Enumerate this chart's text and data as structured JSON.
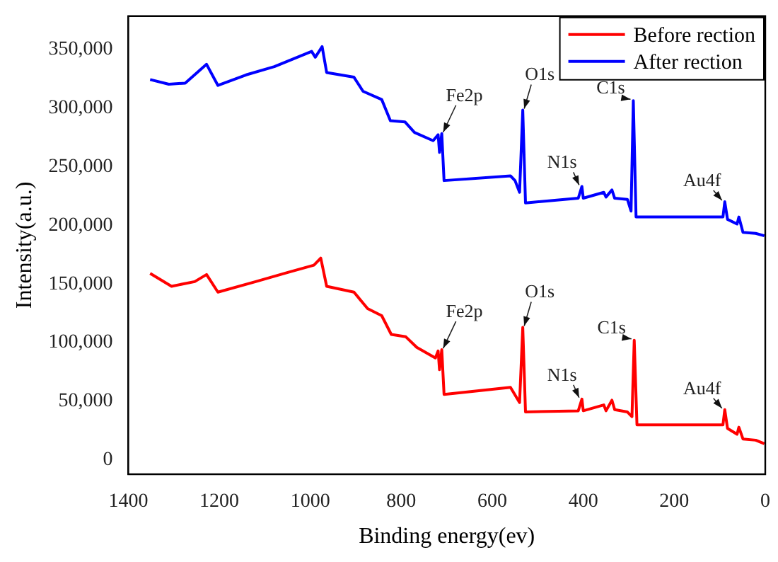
{
  "chart_data": {
    "type": "line",
    "xlabel": "Binding energy(ev)",
    "ylabel": "Intensity(a.u.)",
    "xlim": [
      1400,
      0
    ],
    "xticks": [
      1400,
      1200,
      1000,
      800,
      600,
      400,
      200,
      0
    ],
    "ylim": [
      -12000,
      378000
    ],
    "yticks": [
      {
        "value": 0,
        "label": "0"
      },
      {
        "value": 50000,
        "label": "50,000"
      },
      {
        "value": 100000,
        "label": "100,000"
      },
      {
        "value": 150000,
        "label": "150,000"
      },
      {
        "value": 200000,
        "label": "200,000"
      },
      {
        "value": 250000,
        "label": "250,000"
      },
      {
        "value": 300000,
        "label": "300,000"
      },
      {
        "value": 350000,
        "label": "350,000"
      }
    ],
    "grid": false,
    "legend": "top right",
    "marker": "none",
    "line_style": "solid",
    "series": [
      {
        "name": "Before rection",
        "color": "#ff0000",
        "x": [
          1352,
          1305,
          1254,
          1228,
          1203,
          1120,
          1048,
          992,
          977,
          964,
          904,
          874,
          843,
          822,
          790,
          766,
          725,
          719,
          716,
          711,
          706,
          560,
          540,
          533,
          527,
          411,
          403,
          400,
          355,
          350,
          337,
          331,
          303,
          293,
          288,
          282,
          93,
          89,
          83,
          62,
          58,
          49,
          21,
          2
        ],
        "values": [
          159000,
          148000,
          152000,
          158000,
          143000,
          152000,
          160000,
          166000,
          172000,
          148000,
          143000,
          129000,
          123000,
          107000,
          105000,
          96000,
          87000,
          93000,
          77000,
          94000,
          56000,
          62000,
          49000,
          113000,
          41000,
          42000,
          52000,
          42000,
          47000,
          42000,
          51000,
          43000,
          41000,
          37000,
          102000,
          30000,
          30000,
          43000,
          27000,
          22000,
          28000,
          18000,
          17000,
          14000
        ]
      },
      {
        "name": "After rection",
        "color": "#0000ff",
        "x": [
          1352,
          1311,
          1275,
          1228,
          1203,
          1141,
          1079,
          997,
          989,
          974,
          964,
          904,
          884,
          843,
          824,
          792,
          771,
          730,
          719,
          716,
          711,
          706,
          560,
          550,
          540,
          533,
          527,
          411,
          403,
          400,
          355,
          350,
          337,
          331,
          303,
          295,
          290,
          284,
          93,
          89,
          83,
          62,
          58,
          49,
          21,
          2
        ],
        "values": [
          324000,
          320000,
          321000,
          337000,
          319000,
          328000,
          335000,
          348000,
          343000,
          352000,
          330000,
          326000,
          314000,
          307000,
          289000,
          288000,
          279000,
          272000,
          277000,
          262000,
          278000,
          238000,
          242000,
          238000,
          228000,
          298000,
          219000,
          223000,
          233000,
          223000,
          228000,
          224000,
          230000,
          223000,
          222000,
          212000,
          306000,
          207000,
          207000,
          220000,
          205000,
          201000,
          207000,
          194000,
          193000,
          191000
        ]
      }
    ],
    "annotations": [
      {
        "text": "Fe2p",
        "x": 711,
        "y": 278000
      },
      {
        "text": "O1s",
        "x": 533,
        "y": 298000
      },
      {
        "text": "N1s",
        "x": 403,
        "y": 233000
      },
      {
        "text": "C1s",
        "x": 290,
        "y": 306000
      },
      {
        "text": "Au4f",
        "x": 89,
        "y": 220000
      },
      {
        "text": "Fe2p",
        "x": 711,
        "y": 94000
      },
      {
        "text": "O1s",
        "x": 533,
        "y": 113000
      },
      {
        "text": "N1s",
        "x": 403,
        "y": 52000
      },
      {
        "text": "C1s",
        "x": 288,
        "y": 102000
      },
      {
        "text": "Au4f",
        "x": 89,
        "y": 43000
      }
    ]
  }
}
